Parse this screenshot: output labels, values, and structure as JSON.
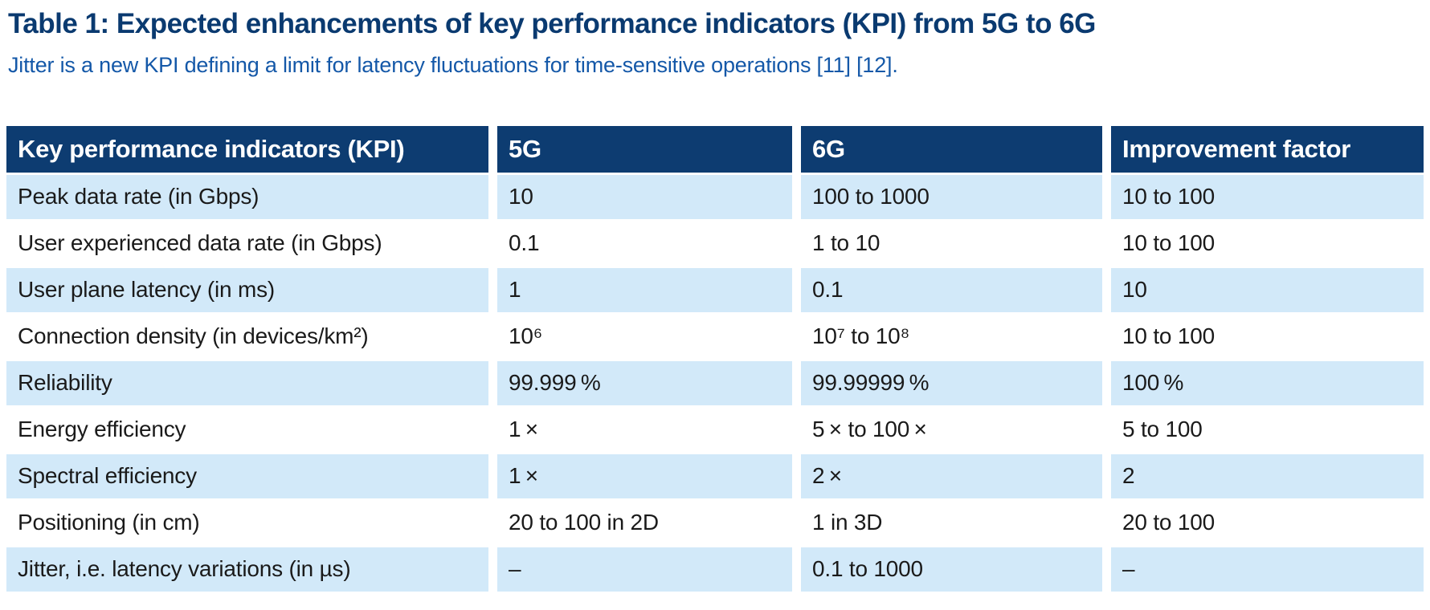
{
  "title": "Table 1: Expected enhancements of key performance indicators (KPI) from 5G to 6G",
  "subtitle": "Jitter is a new KPI defining a limit for latency fluctuations for time-sensitive operations [11] [12].",
  "colors": {
    "header_bg": "#0d3c71",
    "row_alt_bg": "#d2e9f9",
    "title_color": "#0a3a70",
    "subtitle_color": "#1458a8"
  },
  "table": {
    "columns": [
      "Key performance indicators (KPI)",
      "5G",
      "6G",
      "Improvement factor"
    ],
    "rows": [
      [
        "Peak data rate (in Gbps)",
        "10",
        "100 to 1000",
        "10 to 100"
      ],
      [
        "User experienced data rate (in Gbps)",
        "0.1",
        "1 to 10",
        "10 to 100"
      ],
      [
        "User plane latency (in ms)",
        "1",
        "0.1",
        "10"
      ],
      [
        "Connection density (in devices/km²)",
        "10⁶",
        "10⁷ to 10⁸",
        "10 to 100"
      ],
      [
        "Reliability",
        "99.999 %",
        "99.99999 %",
        "100 %"
      ],
      [
        "Energy efficiency",
        "1 ×",
        "5 × to 100 ×",
        "5 to 100"
      ],
      [
        "Spectral efficiency",
        "1 ×",
        "2 ×",
        "2"
      ],
      [
        "Positioning (in cm)",
        "20 to 100 in 2D",
        "1 in 3D",
        "20 to 100"
      ],
      [
        "Jitter, i.e. latency variations (in µs)",
        "–",
        "0.1 to 1000",
        "–"
      ]
    ]
  }
}
